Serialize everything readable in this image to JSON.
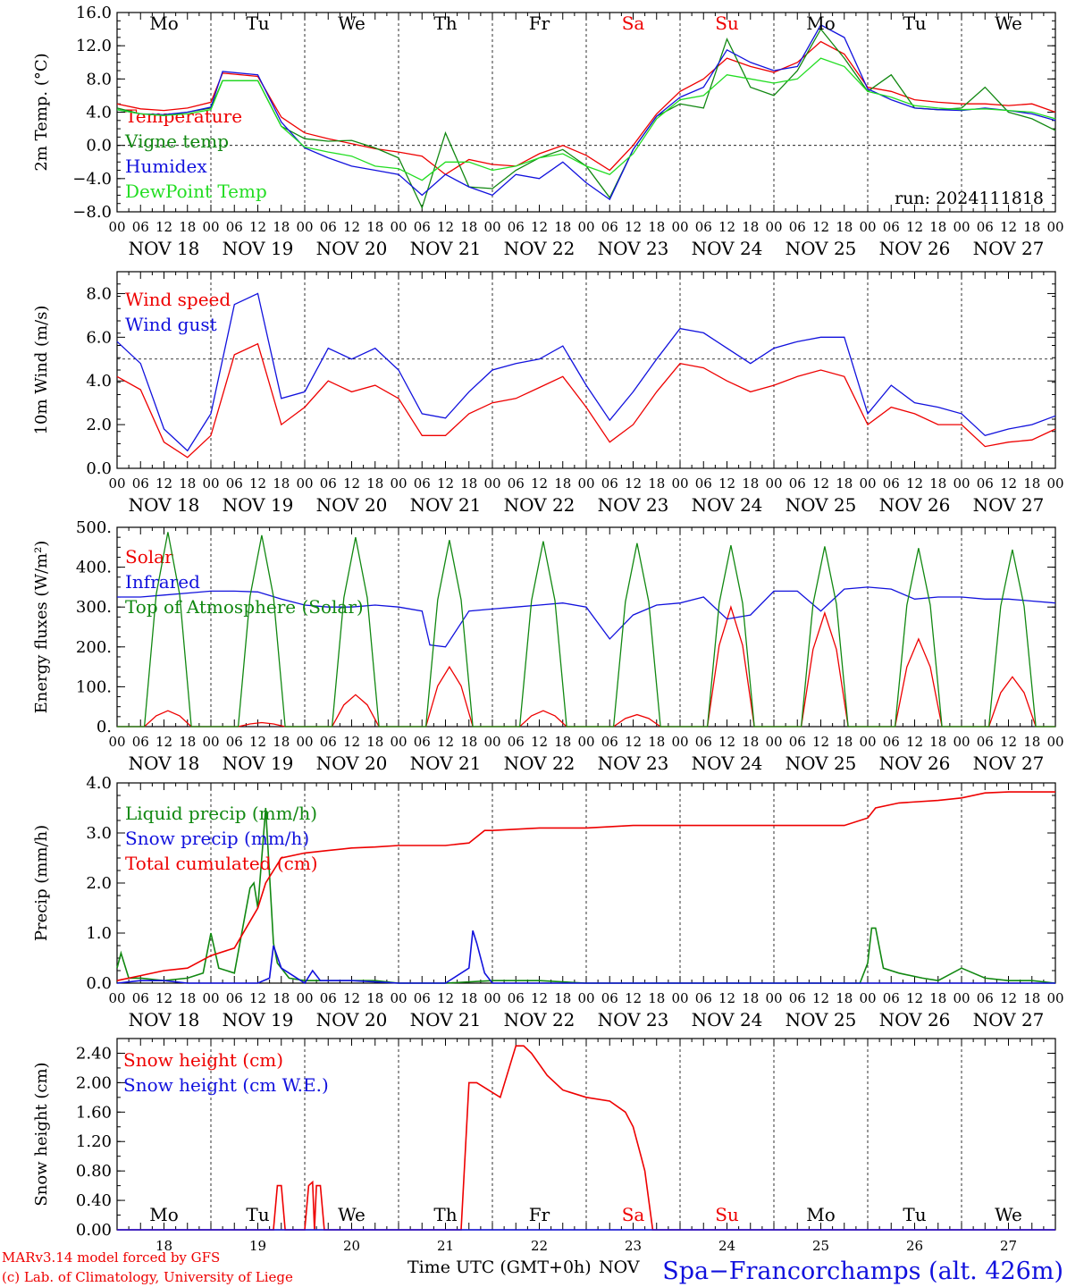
{
  "run_label": "run: 2024111818",
  "time_axis_label": "Time UTC (GMT+0h)",
  "month_label": "NOV",
  "footer_left": [
    "MARv3.14 model forced by GFS",
    "(c) Lab. of Climatology, University of Liege"
  ],
  "station_label": "Spa−Francorchamps (alt. 426m)",
  "colors": {
    "red": "#ee0000",
    "green": "#118811",
    "blue": "#1111dd",
    "light_green": "#22dd22",
    "weekend": "#ee0000"
  },
  "weekdays": [
    "Mo",
    "Tu",
    "We",
    "Th",
    "Fr",
    "Sa",
    "Su",
    "Mo",
    "Tu",
    "We"
  ],
  "weekend_days": [
    5,
    6
  ],
  "date_labels": [
    "NOV 18",
    "NOV 19",
    "NOV 20",
    "NOV 21",
    "NOV 22",
    "NOV 23",
    "NOV 24",
    "NOV 25",
    "NOV 26",
    "NOV 27"
  ],
  "day_numbers": [
    "18",
    "19",
    "20",
    "21",
    "22",
    "23",
    "24",
    "25",
    "26",
    "27"
  ],
  "hour_ticks": [
    "00",
    "06",
    "12",
    "18"
  ],
  "hour_end": "00",
  "chart_data": [
    {
      "type": "line",
      "ylabel": "2m Temp. (°C)",
      "ylim": [
        -8,
        16
      ],
      "yticks": [
        "−8.0",
        "−4.0",
        "0.0",
        "4.0",
        "8.0",
        "12.0",
        "16.0"
      ],
      "hline": 0,
      "x_unit": "hours since Nov 18 00 UTC",
      "series": [
        {
          "name": "Temperature",
          "color": "red",
          "x": [
            0,
            6,
            12,
            18,
            24,
            27,
            36,
            42,
            48,
            54,
            60,
            66,
            72,
            78,
            84,
            90,
            96,
            102,
            108,
            114,
            120,
            126,
            132,
            138,
            144,
            150,
            156,
            162,
            168,
            174,
            180,
            186,
            192,
            198,
            204,
            210,
            216,
            222,
            228,
            234,
            240
          ],
          "y": [
            5.0,
            4.4,
            4.2,
            4.5,
            5.2,
            8.7,
            8.3,
            3.4,
            1.5,
            0.8,
            0.2,
            -0.4,
            -0.8,
            -1.3,
            -3.5,
            -1.7,
            -2.3,
            -2.5,
            -1.0,
            0.0,
            -1.2,
            -3.0,
            0.0,
            3.8,
            6.5,
            8.0,
            10.5,
            9.5,
            8.8,
            10.0,
            12.5,
            11.0,
            7.0,
            6.5,
            5.5,
            5.2,
            5.0,
            5.0,
            4.8,
            5.0,
            4.0
          ]
        },
        {
          "name": "Vigne temp",
          "color": "green",
          "x": [
            0,
            6,
            12,
            18,
            24,
            27,
            36,
            42,
            48,
            54,
            60,
            66,
            72,
            78,
            84,
            90,
            96,
            102,
            108,
            114,
            120,
            126,
            132,
            138,
            144,
            150,
            156,
            162,
            168,
            174,
            180,
            186,
            192,
            198,
            204,
            210,
            216,
            222,
            228,
            234,
            240
          ],
          "y": [
            4.5,
            3.8,
            3.6,
            4.0,
            4.5,
            7.8,
            7.8,
            2.3,
            0.8,
            0.5,
            0.6,
            -0.3,
            -1.5,
            -7.5,
            1.5,
            -5.0,
            -5.2,
            -3.0,
            -1.5,
            -0.5,
            -2.5,
            -6.3,
            -0.5,
            3.5,
            5.0,
            4.5,
            12.8,
            7.0,
            6.0,
            9.0,
            14.0,
            10.5,
            6.5,
            8.5,
            4.5,
            4.3,
            4.5,
            7.0,
            4.0,
            3.2,
            1.8
          ]
        },
        {
          "name": "Humidex",
          "color": "blue",
          "x": [
            0,
            6,
            12,
            18,
            24,
            27,
            36,
            42,
            48,
            54,
            60,
            66,
            72,
            78,
            84,
            90,
            96,
            102,
            108,
            114,
            120,
            126,
            132,
            138,
            144,
            150,
            156,
            162,
            168,
            174,
            180,
            186,
            192,
            198,
            204,
            210,
            216,
            222,
            228,
            234,
            240
          ],
          "y": [
            4.3,
            3.8,
            3.7,
            4.0,
            4.6,
            8.9,
            8.5,
            2.8,
            -0.3,
            -1.5,
            -2.5,
            -3.0,
            -3.5,
            -6.0,
            -3.5,
            -5.0,
            -6.0,
            -3.5,
            -4.0,
            -2.0,
            -4.5,
            -6.5,
            -0.5,
            3.5,
            5.8,
            7.0,
            11.5,
            10.0,
            9.0,
            9.5,
            14.5,
            13.0,
            6.8,
            5.5,
            4.5,
            4.3,
            4.2,
            4.5,
            4.2,
            3.8,
            3.0
          ]
        },
        {
          "name": "DewPoint Temp",
          "color": "light_green",
          "x": [
            0,
            6,
            12,
            18,
            24,
            27,
            36,
            42,
            48,
            54,
            60,
            66,
            72,
            78,
            84,
            90,
            96,
            102,
            108,
            114,
            120,
            126,
            132,
            138,
            144,
            150,
            156,
            162,
            168,
            174,
            180,
            186,
            192,
            198,
            204,
            210,
            216,
            222,
            228,
            234,
            240
          ],
          "y": [
            4.3,
            3.8,
            3.6,
            3.8,
            4.3,
            7.8,
            7.8,
            2.3,
            -0.2,
            -0.8,
            -1.3,
            -2.5,
            -2.8,
            -4.2,
            -2.0,
            -2.0,
            -3.0,
            -2.5,
            -1.5,
            -1.0,
            -2.5,
            -3.5,
            -1.0,
            3.2,
            5.5,
            6.0,
            8.5,
            8.0,
            7.5,
            8.0,
            10.5,
            9.5,
            6.5,
            5.8,
            4.8,
            4.5,
            4.3,
            4.4,
            4.2,
            4.0,
            3.2
          ]
        }
      ]
    },
    {
      "type": "line",
      "ylabel": "10m Wind (m/s)",
      "ylim": [
        0,
        9
      ],
      "yticks": [
        "0.0",
        "2.0",
        "4.0",
        "6.0",
        "8.0"
      ],
      "hline": 5,
      "series": [
        {
          "name": "Wind speed",
          "color": "red",
          "x": [
            0,
            6,
            12,
            18,
            24,
            30,
            36,
            42,
            48,
            54,
            60,
            66,
            72,
            78,
            84,
            90,
            96,
            102,
            108,
            114,
            120,
            126,
            132,
            138,
            144,
            150,
            156,
            162,
            168,
            174,
            180,
            186,
            192,
            198,
            204,
            210,
            216,
            222,
            228,
            234,
            240
          ],
          "y": [
            4.2,
            3.6,
            1.2,
            0.5,
            1.5,
            5.2,
            5.7,
            2.0,
            2.8,
            4.0,
            3.5,
            3.8,
            3.2,
            1.5,
            1.5,
            2.5,
            3.0,
            3.2,
            3.7,
            4.2,
            2.8,
            1.2,
            2.0,
            3.5,
            4.8,
            4.6,
            4.0,
            3.5,
            3.8,
            4.2,
            4.5,
            4.2,
            2.0,
            2.8,
            2.5,
            2.0,
            2.0,
            1.0,
            1.2,
            1.3,
            1.8
          ]
        },
        {
          "name": "Wind gust",
          "color": "blue",
          "x": [
            0,
            6,
            12,
            18,
            24,
            30,
            36,
            42,
            48,
            54,
            60,
            66,
            72,
            78,
            84,
            90,
            96,
            102,
            108,
            114,
            120,
            126,
            132,
            138,
            144,
            150,
            156,
            162,
            168,
            174,
            180,
            186,
            192,
            198,
            204,
            210,
            216,
            222,
            228,
            234,
            240
          ],
          "y": [
            5.8,
            4.8,
            1.8,
            0.8,
            2.5,
            7.5,
            8.0,
            3.2,
            3.5,
            5.5,
            5.0,
            5.5,
            4.5,
            2.5,
            2.3,
            3.5,
            4.5,
            4.8,
            5.0,
            5.6,
            3.8,
            2.2,
            3.5,
            5.0,
            6.4,
            6.2,
            5.5,
            4.8,
            5.5,
            5.8,
            6.0,
            6.0,
            2.5,
            3.8,
            3.0,
            2.8,
            2.5,
            1.5,
            1.8,
            2.0,
            2.4
          ]
        }
      ]
    },
    {
      "type": "line",
      "ylabel": "Energy fluxes (W/m²)",
      "ylim": [
        0,
        500
      ],
      "yticks": [
        "0.",
        "100.",
        "200.",
        "300.",
        "400.",
        "500."
      ],
      "series": [
        {
          "name": "Solar",
          "color": "red",
          "diurnal": true,
          "peaks": [
            [
              13,
              40
            ],
            [
              37,
              10
            ],
            [
              61,
              80
            ],
            [
              85,
              150
            ],
            [
              109,
              40
            ],
            [
              133,
              30
            ],
            [
              157,
              300
            ],
            [
              181,
              285
            ],
            [
              205,
              220
            ],
            [
              229,
              125
            ]
          ]
        },
        {
          "name": "Infrared",
          "color": "blue",
          "x": [
            0,
            6,
            12,
            18,
            24,
            30,
            36,
            42,
            48,
            54,
            60,
            66,
            72,
            78,
            80,
            84,
            90,
            96,
            102,
            108,
            114,
            120,
            126,
            132,
            138,
            144,
            150,
            156,
            162,
            168,
            174,
            180,
            186,
            192,
            198,
            204,
            210,
            216,
            222,
            228,
            234,
            240
          ],
          "y": [
            325,
            325,
            330,
            335,
            340,
            340,
            338,
            320,
            305,
            300,
            300,
            305,
            300,
            290,
            205,
            200,
            290,
            295,
            300,
            305,
            310,
            300,
            220,
            280,
            305,
            310,
            325,
            270,
            280,
            340,
            340,
            290,
            345,
            350,
            345,
            320,
            325,
            325,
            320,
            320,
            315,
            310
          ]
        },
        {
          "name": "Top of Atmosphere (Solar)",
          "color": "green",
          "diurnal": true,
          "peaks": [
            [
              13,
              488
            ],
            [
              37,
              480
            ],
            [
              61,
              475
            ],
            [
              85,
              468
            ],
            [
              109,
              465
            ],
            [
              133,
              460
            ],
            [
              157,
              455
            ],
            [
              181,
              452
            ],
            [
              205,
              448
            ],
            [
              229,
              444
            ]
          ]
        }
      ]
    },
    {
      "type": "line",
      "ylabel": "Precip (mm/h)",
      "ylim": [
        0,
        4
      ],
      "yticks": [
        "0.0",
        "1.0",
        "2.0",
        "3.0",
        "4.0"
      ],
      "series": [
        {
          "name": "Liquid precip (mm/h)",
          "color": "green",
          "x": [
            0,
            1,
            3,
            6,
            12,
            18,
            22,
            24,
            26,
            30,
            34,
            35,
            36,
            38,
            40,
            41,
            42,
            44,
            48,
            54,
            60,
            66,
            72,
            84,
            96,
            108,
            120,
            132,
            144,
            168,
            180,
            190,
            192,
            193,
            194,
            196,
            200,
            206,
            210,
            216,
            222,
            228,
            234,
            240
          ],
          "y": [
            0.3,
            0.6,
            0.1,
            0.1,
            0.05,
            0.1,
            0.2,
            1.0,
            0.3,
            0.2,
            1.9,
            2.0,
            1.5,
            3.5,
            0.8,
            0.4,
            0.3,
            0.1,
            0.05,
            0.05,
            0.05,
            0.05,
            0,
            0,
            0.05,
            0.05,
            0,
            0,
            0,
            0,
            0,
            0,
            0.4,
            1.1,
            1.1,
            0.3,
            0.2,
            0.1,
            0.05,
            0.3,
            0.1,
            0.05,
            0.05,
            0
          ]
        },
        {
          "name": "Snow precip (mm/h)",
          "color": "blue",
          "x": [
            0,
            6,
            12,
            18,
            24,
            36,
            39,
            40,
            42,
            48,
            50,
            52,
            60,
            72,
            84,
            90,
            91,
            92,
            94,
            96,
            108,
            120,
            240
          ],
          "y": [
            0,
            0.05,
            0.05,
            0,
            0,
            0,
            0.1,
            0.75,
            0.3,
            0,
            0.25,
            0.05,
            0.05,
            0,
            0,
            0.3,
            1.05,
            0.8,
            0.2,
            0,
            0,
            0,
            0
          ]
        },
        {
          "name": "Total cumulated (cm)",
          "color": "red",
          "x": [
            0,
            6,
            12,
            18,
            24,
            30,
            36,
            38,
            42,
            48,
            54,
            60,
            66,
            72,
            84,
            90,
            94,
            96,
            108,
            120,
            132,
            144,
            156,
            168,
            180,
            186,
            192,
            194,
            200,
            210,
            216,
            222,
            228,
            234,
            240
          ],
          "y": [
            0.05,
            0.15,
            0.25,
            0.3,
            0.55,
            0.7,
            1.5,
            2.0,
            2.5,
            2.6,
            2.65,
            2.7,
            2.72,
            2.75,
            2.75,
            2.8,
            3.05,
            3.05,
            3.1,
            3.1,
            3.15,
            3.15,
            3.15,
            3.15,
            3.15,
            3.15,
            3.3,
            3.5,
            3.6,
            3.65,
            3.7,
            3.8,
            3.82,
            3.82,
            3.82
          ]
        }
      ]
    },
    {
      "type": "line",
      "ylabel": "Snow height (cm)",
      "ylim": [
        0,
        2.6
      ],
      "yticks": [
        "0.00",
        "0.40",
        "0.80",
        "1.20",
        "1.60",
        "2.00",
        "2.40"
      ],
      "series": [
        {
          "name": "Snow height (cm)",
          "color": "red",
          "x": [
            0,
            40,
            41,
            42,
            43,
            48,
            49,
            50,
            50.5,
            51,
            52,
            53,
            54,
            88,
            90,
            92,
            98,
            102,
            104,
            106,
            110,
            114,
            120,
            126,
            130,
            132,
            134,
            135,
            136,
            137,
            240
          ],
          "y": [
            0,
            0,
            0.6,
            0.6,
            0,
            0,
            0.6,
            0.65,
            0,
            0.6,
            0.6,
            0,
            0,
            0,
            2.0,
            2.0,
            1.8,
            2.5,
            2.5,
            2.4,
            2.1,
            1.9,
            1.8,
            1.75,
            1.6,
            1.4,
            1.0,
            0.8,
            0.4,
            0,
            0
          ]
        },
        {
          "name": "Snow height (cm W.E.)",
          "color": "blue",
          "x": [
            0,
            240
          ],
          "y": [
            0,
            0
          ]
        }
      ]
    }
  ]
}
